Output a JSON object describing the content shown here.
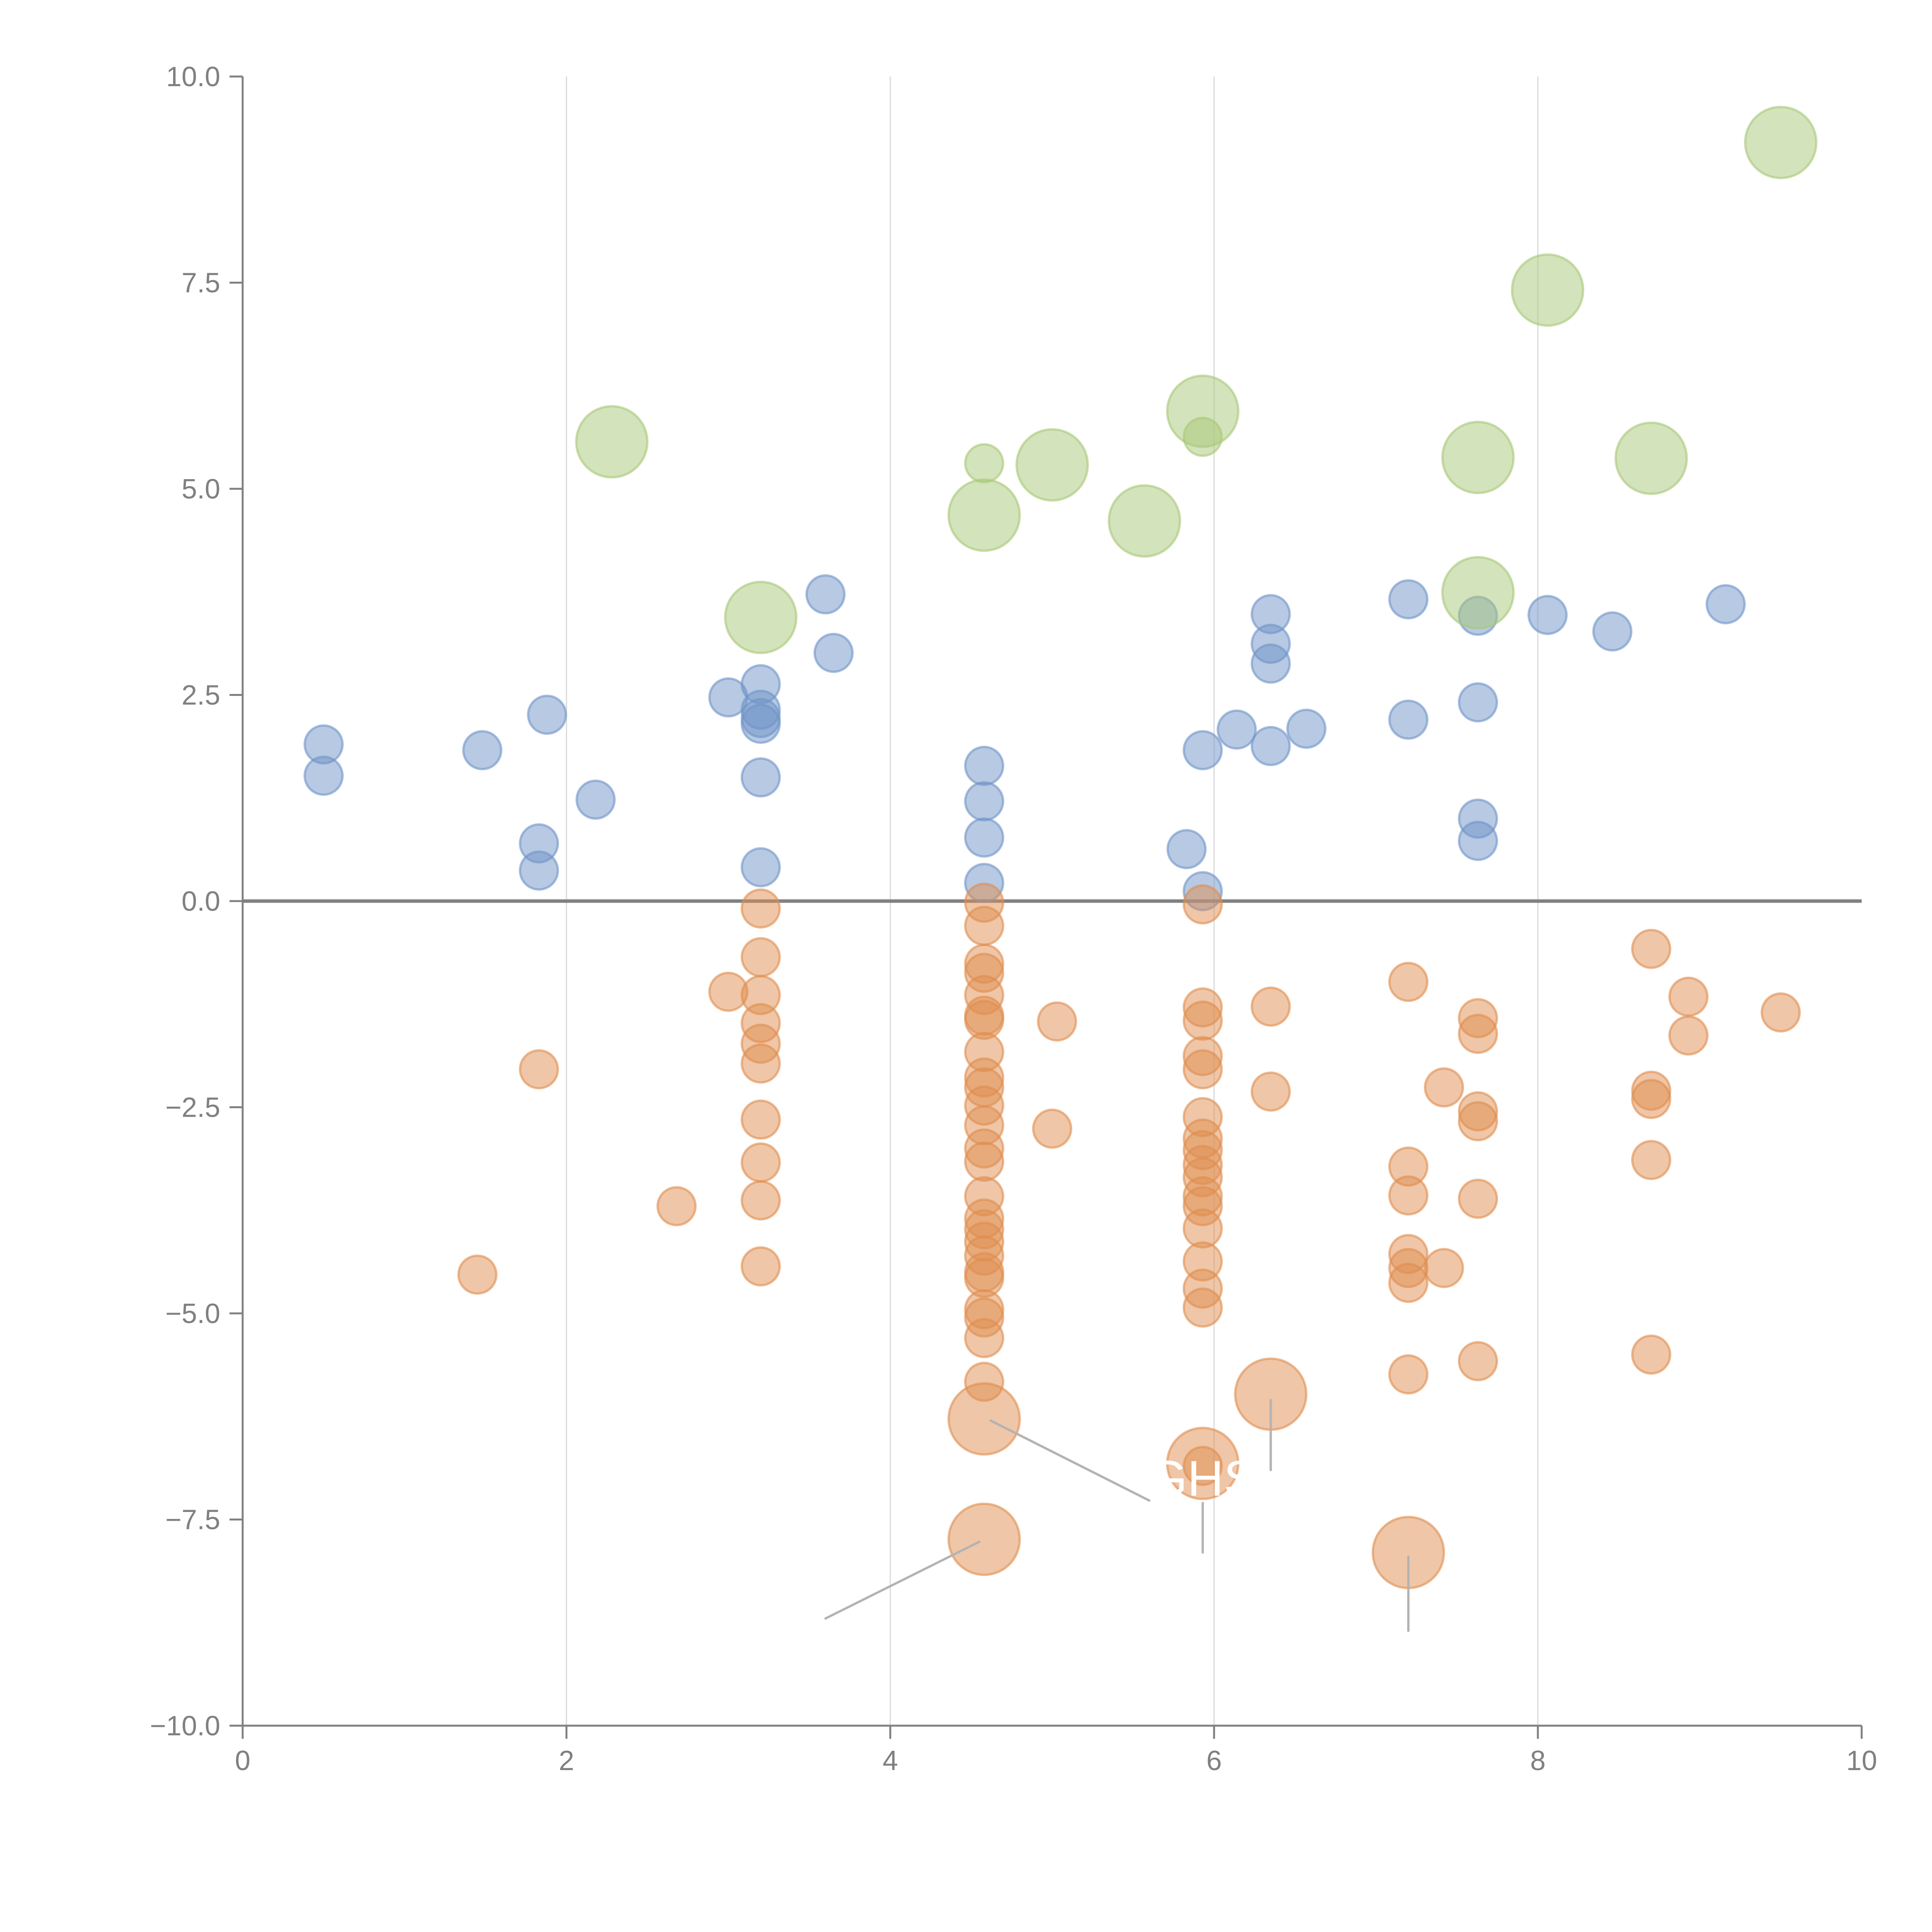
{
  "chart_data": {
    "type": "scatter",
    "title": "",
    "xlabel": "",
    "ylabel": "",
    "xlim": [
      0,
      10
    ],
    "ylim": [
      -10,
      10
    ],
    "x_ticks": [
      "0",
      "2",
      "4",
      "6",
      "8",
      "10"
    ],
    "x_tick_values": [
      0,
      2,
      4,
      6,
      8,
      10
    ],
    "y_ticks": [
      "10.0",
      "7.5",
      "5.0",
      "2.5",
      "0.0",
      "−2.5",
      "−5.0",
      "−7.5",
      "−10.0"
    ],
    "y_tick_values": [
      10,
      7.5,
      5,
      2.5,
      0,
      -2.5,
      -5,
      -7.5,
      -10
    ],
    "grid": "vertical",
    "zero_line": true,
    "legend": "none",
    "colors": {
      "blue": "#7094c8",
      "orange": "#e08e4f",
      "green": "#a8c878",
      "axis": "#808080",
      "leader": "#b3b3b3"
    },
    "series": [
      {
        "name": "blue",
        "size": "small",
        "points": [
          [
            0.5,
            1.9
          ],
          [
            0.5,
            1.52
          ],
          [
            1.48,
            1.83
          ],
          [
            1.88,
            2.26
          ],
          [
            1.83,
            0.7
          ],
          [
            1.83,
            0.37
          ],
          [
            2.18,
            1.23
          ],
          [
            3.0,
            2.47
          ],
          [
            3.2,
            2.63
          ],
          [
            3.2,
            2.32
          ],
          [
            3.2,
            2.22
          ],
          [
            3.2,
            2.15
          ],
          [
            3.2,
            1.5
          ],
          [
            3.2,
            0.41
          ],
          [
            3.6,
            3.72
          ],
          [
            3.65,
            3.01
          ],
          [
            4.58,
            1.64
          ],
          [
            4.58,
            1.21
          ],
          [
            4.58,
            0.77
          ],
          [
            4.58,
            0.22
          ],
          [
            5.83,
            0.63
          ],
          [
            5.93,
            0.12
          ],
          [
            5.93,
            1.83
          ],
          [
            6.14,
            2.08
          ],
          [
            6.35,
            3.48
          ],
          [
            6.35,
            3.12
          ],
          [
            6.35,
            2.88
          ],
          [
            6.35,
            1.88
          ],
          [
            6.57,
            2.09
          ],
          [
            7.2,
            3.66
          ],
          [
            7.2,
            2.2
          ],
          [
            7.63,
            3.46
          ],
          [
            7.63,
            2.41
          ],
          [
            7.63,
            1.0
          ],
          [
            7.63,
            0.73
          ],
          [
            8.06,
            3.47
          ],
          [
            8.46,
            3.27
          ],
          [
            9.16,
            3.6
          ]
        ]
      },
      {
        "name": "orange",
        "size": "small",
        "points": [
          [
            1.45,
            -4.53
          ],
          [
            1.83,
            -2.04
          ],
          [
            2.68,
            -3.7
          ],
          [
            3.0,
            -1.1
          ],
          [
            3.2,
            -0.09
          ],
          [
            3.2,
            -0.68
          ],
          [
            3.2,
            -1.14
          ],
          [
            3.2,
            -1.48
          ],
          [
            3.2,
            -1.73
          ],
          [
            3.2,
            -1.97
          ],
          [
            3.2,
            -2.65
          ],
          [
            3.2,
            -3.17
          ],
          [
            3.2,
            -3.63
          ],
          [
            3.2,
            -4.43
          ],
          [
            4.58,
            -0.02
          ],
          [
            4.58,
            -0.3
          ],
          [
            4.58,
            -0.76
          ],
          [
            4.58,
            -0.87
          ],
          [
            4.58,
            -1.14
          ],
          [
            4.58,
            -1.39
          ],
          [
            4.58,
            -1.44
          ],
          [
            4.58,
            -1.83
          ],
          [
            4.58,
            -2.14
          ],
          [
            4.58,
            -2.26
          ],
          [
            4.58,
            -2.48
          ],
          [
            4.58,
            -2.72
          ],
          [
            4.58,
            -3.0
          ],
          [
            4.58,
            -3.16
          ],
          [
            4.58,
            -3.58
          ],
          [
            4.58,
            -3.85
          ],
          [
            4.58,
            -3.98
          ],
          [
            4.58,
            -4.13
          ],
          [
            4.58,
            -4.3
          ],
          [
            4.58,
            -4.5
          ],
          [
            4.58,
            -4.57
          ],
          [
            4.58,
            -4.95
          ],
          [
            4.58,
            -5.05
          ],
          [
            4.58,
            -5.3
          ],
          [
            4.58,
            -5.83
          ],
          [
            5.03,
            -1.46
          ],
          [
            5.0,
            -2.76
          ],
          [
            5.93,
            -0.04
          ],
          [
            5.93,
            -1.29
          ],
          [
            5.93,
            -1.45
          ],
          [
            5.93,
            -1.88
          ],
          [
            5.93,
            -2.04
          ],
          [
            5.93,
            -2.62
          ],
          [
            5.93,
            -2.88
          ],
          [
            5.93,
            -3.02
          ],
          [
            5.93,
            -3.2
          ],
          [
            5.93,
            -3.35
          ],
          [
            5.93,
            -3.58
          ],
          [
            5.93,
            -3.7
          ],
          [
            5.93,
            -3.97
          ],
          [
            5.93,
            -4.37
          ],
          [
            5.93,
            -4.7
          ],
          [
            5.93,
            -4.93
          ],
          [
            5.93,
            -6.85
          ],
          [
            6.35,
            -1.28
          ],
          [
            6.35,
            -2.31
          ],
          [
            7.2,
            -0.98
          ],
          [
            7.2,
            -3.22
          ],
          [
            7.2,
            -3.57
          ],
          [
            7.2,
            -4.28
          ],
          [
            7.2,
            -4.45
          ],
          [
            7.2,
            -4.63
          ],
          [
            7.2,
            -5.74
          ],
          [
            7.42,
            -2.26
          ],
          [
            7.42,
            -4.45
          ],
          [
            7.63,
            -1.42
          ],
          [
            7.63,
            -1.61
          ],
          [
            7.63,
            -2.55
          ],
          [
            7.63,
            -2.67
          ],
          [
            7.63,
            -3.61
          ],
          [
            7.63,
            -5.58
          ],
          [
            8.7,
            -0.58
          ],
          [
            8.7,
            -2.3
          ],
          [
            8.7,
            -2.4
          ],
          [
            8.7,
            -3.14
          ],
          [
            8.7,
            -5.5
          ],
          [
            8.93,
            -1.16
          ],
          [
            8.93,
            -1.63
          ],
          [
            9.5,
            -1.35
          ]
        ]
      },
      {
        "name": "orange-large",
        "size": "large",
        "points": [
          [
            4.58,
            -6.28
          ],
          [
            4.58,
            -7.74
          ],
          [
            5.93,
            -6.82
          ],
          [
            6.35,
            -5.98
          ],
          [
            7.2,
            -7.9
          ]
        ]
      },
      {
        "name": "green",
        "size": "large",
        "points": [
          [
            2.28,
            5.57
          ],
          [
            3.2,
            3.44
          ],
          [
            4.58,
            4.68
          ],
          [
            5.0,
            5.29
          ],
          [
            5.57,
            4.61
          ],
          [
            5.93,
            5.94
          ],
          [
            7.63,
            5.38
          ],
          [
            7.63,
            3.74
          ],
          [
            8.06,
            7.41
          ],
          [
            8.7,
            5.37
          ],
          [
            9.5,
            9.2
          ]
        ]
      },
      {
        "name": "green-small",
        "size": "small",
        "points": [
          [
            4.58,
            5.31
          ],
          [
            5.93,
            5.63
          ]
        ]
      }
    ],
    "annotations": [
      {
        "text": "GHS",
        "color": "#ffffff",
        "anchor": [
          5.93,
          -7.0
        ]
      }
    ],
    "leader_lines": [
      {
        "from": [
          4.62,
          -6.3
        ],
        "to": [
          5.6,
          -7.27
        ]
      },
      {
        "from": [
          4.55,
          -7.77
        ],
        "to": [
          3.6,
          -8.7
        ]
      },
      {
        "from": [
          6.35,
          -6.05
        ],
        "to": [
          6.35,
          -6.9
        ]
      },
      {
        "from": [
          5.93,
          -7.3
        ],
        "to": [
          5.93,
          -7.9
        ]
      },
      {
        "from": [
          7.2,
          -7.95
        ],
        "to": [
          7.2,
          -8.85
        ]
      }
    ]
  }
}
